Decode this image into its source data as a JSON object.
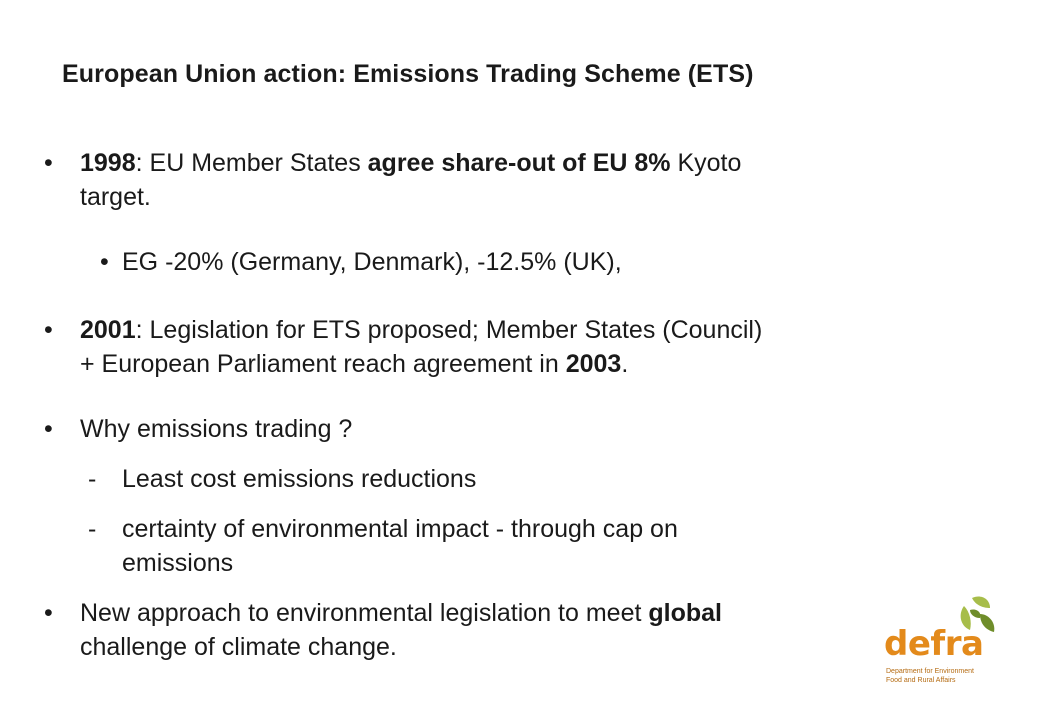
{
  "title": "European Union action: Emissions Trading Scheme (ETS)",
  "bullets": {
    "b1": {
      "bullet": "•",
      "year": "1998",
      "t1": ": EU Member States ",
      "bold1": "agree share-out of EU 8%",
      "t2": " Kyoto",
      "line2": "target."
    },
    "sub1": {
      "bullet": "•",
      "text": "EG -20% (Germany, Denmark), -12.5% (UK),"
    },
    "b2": {
      "bullet": "•",
      "year": "2001",
      "t1": ": Legislation for ETS proposed;  Member States (Council)",
      "line2a": "+ European Parliament reach agreement in ",
      "year2": "2003",
      "line2b": "."
    },
    "b3": {
      "bullet": "•",
      "text": "Why emissions trading ?"
    },
    "dash1": {
      "bullet": "-",
      "text": "Least cost emissions reductions"
    },
    "dash2": {
      "bullet": "-",
      "line1": "certainty of environmental impact - through cap on",
      "line2": "emissions"
    },
    "b4": {
      "bullet": "•",
      "t1": "New approach to environmental legislation to meet ",
      "bold1": "global",
      "line2": "challenge of climate change."
    }
  },
  "logo": {
    "word": "defra",
    "line1": "Department for Environment",
    "line2": "Food and Rural Affairs",
    "colors": {
      "orange": "#e38a1b",
      "green_dark": "#6f8d2a",
      "green_light": "#a7bd4a"
    }
  }
}
